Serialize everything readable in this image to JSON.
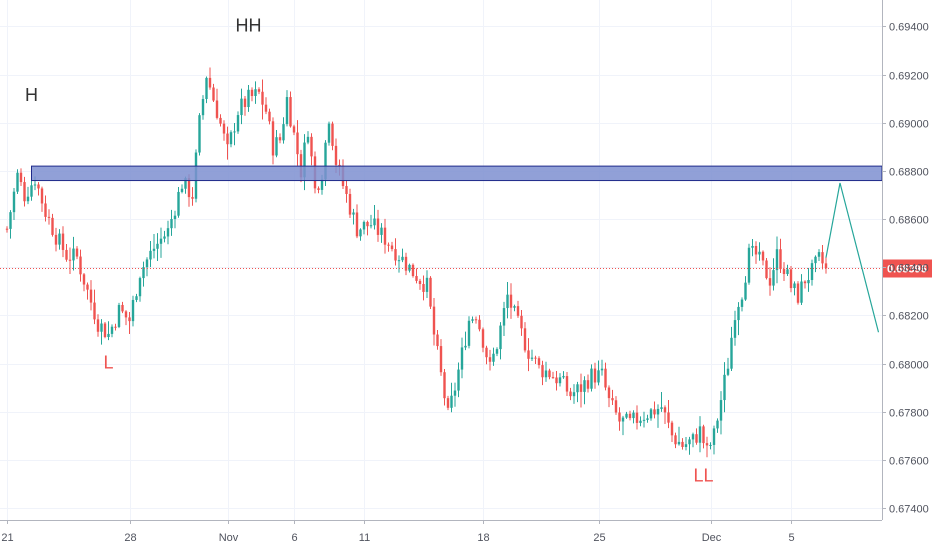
{
  "chart_data": {
    "type": "candlestick",
    "title": "",
    "xlabel": "",
    "ylabel": "",
    "ylim": [
      0.6735,
      0.6951
    ],
    "y_ticks": [
      "0.69400",
      "0.69200",
      "0.69000",
      "0.68800",
      "0.68600",
      "0.68400",
      "0.68200",
      "0.68000",
      "0.67800",
      "0.67600",
      "0.67400"
    ],
    "x_ticks": [
      {
        "label": "21",
        "index": 0
      },
      {
        "label": "28",
        "index": 35
      },
      {
        "label": "Nov",
        "index": 63
      },
      {
        "label": "6",
        "index": 82
      },
      {
        "label": "11",
        "index": 102
      },
      {
        "label": "18",
        "index": 136
      },
      {
        "label": "25",
        "index": 169
      },
      {
        "label": "Dec",
        "index": 201
      },
      {
        "label": "5",
        "index": 224
      }
    ],
    "current_price": 0.68396,
    "current_price_label": "0.68396",
    "grid": true,
    "colors": {
      "up": "#26a69a",
      "down": "#ef5350",
      "zone_fill": "#7e8fd0",
      "zone_border": "#1f2a8a",
      "projection": "#26a69a",
      "price_line": "#ef5350"
    },
    "supply_zone": {
      "from_index": 7,
      "y_top": 0.6882,
      "y_bottom": 0.6876
    },
    "projection": [
      {
        "index": 234,
        "price": 0.6844
      },
      {
        "index": 238,
        "price": 0.6875
      },
      {
        "index": 249,
        "price": 0.6813
      }
    ],
    "annotations": [
      {
        "text": "H",
        "index": 7,
        "price": 0.6909,
        "color": "#333333"
      },
      {
        "text": "HH",
        "index": 69,
        "price": 0.6938,
        "color": "#333333"
      },
      {
        "text": "L",
        "index": 29,
        "price": 0.6798,
        "color": "#ef5350"
      },
      {
        "text": "LL",
        "index": 199,
        "price": 0.6751,
        "color": "#ef5350"
      }
    ],
    "waypoints": [
      [
        0,
        0.6856
      ],
      [
        3,
        0.6878
      ],
      [
        5,
        0.687
      ],
      [
        8,
        0.6877
      ],
      [
        11,
        0.6863
      ],
      [
        14,
        0.6853
      ],
      [
        17,
        0.6845
      ],
      [
        20,
        0.6844
      ],
      [
        23,
        0.683
      ],
      [
        26,
        0.6817
      ],
      [
        29,
        0.6812
      ],
      [
        32,
        0.6822
      ],
      [
        35,
        0.6818
      ],
      [
        38,
        0.6838
      ],
      [
        42,
        0.6848
      ],
      [
        46,
        0.6855
      ],
      [
        50,
        0.6875
      ],
      [
        53,
        0.687
      ],
      [
        55,
        0.69
      ],
      [
        57,
        0.692
      ],
      [
        60,
        0.6905
      ],
      [
        63,
        0.6888
      ],
      [
        66,
        0.6905
      ],
      [
        69,
        0.691
      ],
      [
        72,
        0.6912
      ],
      [
        74,
        0.6905
      ],
      [
        76,
        0.689
      ],
      [
        78,
        0.6893
      ],
      [
        80,
        0.691
      ],
      [
        82,
        0.6895
      ],
      [
        84,
        0.688
      ],
      [
        86,
        0.6898
      ],
      [
        88,
        0.6872
      ],
      [
        90,
        0.688
      ],
      [
        92,
        0.6903
      ],
      [
        94,
        0.6884
      ],
      [
        96,
        0.6874
      ],
      [
        98,
        0.6865
      ],
      [
        100,
        0.6856
      ],
      [
        104,
        0.6858
      ],
      [
        108,
        0.6852
      ],
      [
        112,
        0.6845
      ],
      [
        116,
        0.6838
      ],
      [
        120,
        0.6832
      ],
      [
        122,
        0.6812
      ],
      [
        124,
        0.6795
      ],
      [
        126,
        0.6778
      ],
      [
        128,
        0.679
      ],
      [
        130,
        0.6804
      ],
      [
        132,
        0.6818
      ],
      [
        134,
        0.6821
      ],
      [
        136,
        0.681
      ],
      [
        138,
        0.6798
      ],
      [
        140,
        0.6808
      ],
      [
        143,
        0.6828
      ],
      [
        146,
        0.6816
      ],
      [
        149,
        0.6805
      ],
      [
        152,
        0.6798
      ],
      [
        155,
        0.6796
      ],
      [
        158,
        0.6793
      ],
      [
        161,
        0.6787
      ],
      [
        164,
        0.679
      ],
      [
        167,
        0.6795
      ],
      [
        170,
        0.6795
      ],
      [
        172,
        0.6784
      ],
      [
        175,
        0.6776
      ],
      [
        178,
        0.6775
      ],
      [
        181,
        0.6778
      ],
      [
        184,
        0.678
      ],
      [
        187,
        0.6782
      ],
      [
        190,
        0.677
      ],
      [
        193,
        0.6766
      ],
      [
        196,
        0.6768
      ],
      [
        198,
        0.6772
      ],
      [
        200,
        0.6763
      ],
      [
        202,
        0.677
      ],
      [
        204,
        0.6785
      ],
      [
        206,
        0.68
      ],
      [
        208,
        0.6822
      ],
      [
        210,
        0.683
      ],
      [
        212,
        0.6845
      ],
      [
        214,
        0.6845
      ],
      [
        216,
        0.684
      ],
      [
        218,
        0.6835
      ],
      [
        220,
        0.6845
      ],
      [
        222,
        0.684
      ],
      [
        224,
        0.6832
      ],
      [
        226,
        0.6828
      ],
      [
        228,
        0.6835
      ],
      [
        230,
        0.6838
      ],
      [
        232,
        0.6843
      ],
      [
        234,
        0.684
      ]
    ]
  }
}
